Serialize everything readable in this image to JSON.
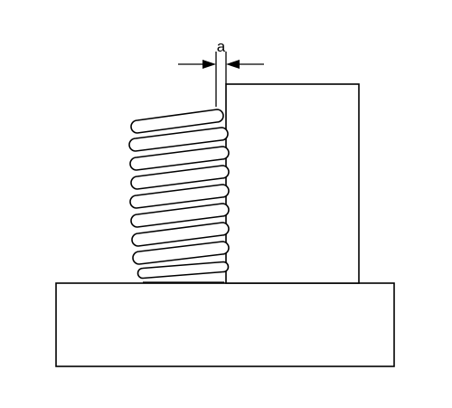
{
  "diagram": {
    "dimension_label": "a",
    "stroke_color": "#000000",
    "background_color": "#ffffff"
  }
}
